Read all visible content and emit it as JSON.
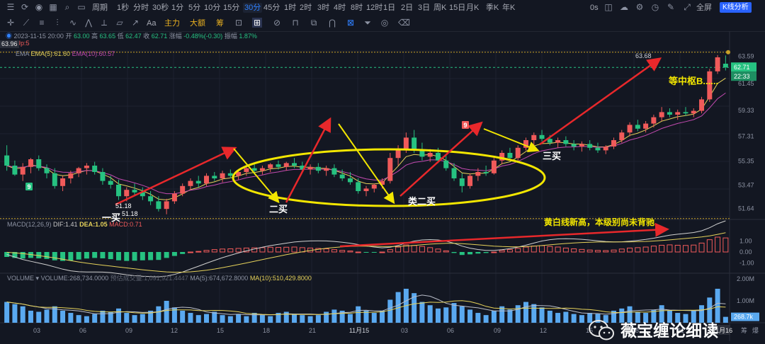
{
  "toolbar": {
    "top_items": [
      "周期",
      "1秒",
      "分时",
      "30秒",
      "1分",
      "5分",
      "10分",
      "15分",
      "30分",
      "45分",
      "1时",
      "2时",
      "3时",
      "4时",
      "8时",
      "12时",
      "1日",
      "2日",
      "3日",
      "周K",
      "15日",
      "月K",
      "季K",
      "年K"
    ],
    "active_period": "30分",
    "right_items": [
      "0s",
      "全屏",
      "K线分析"
    ],
    "draw_tools": [
      "Aa",
      "主力",
      "大额",
      "筹"
    ]
  },
  "ohlc_info": {
    "datetime": "2023-11-15 20:00",
    "open_label": "开",
    "open": "63.00",
    "high_label": "高",
    "high": "63.65",
    "low_label": "低",
    "low": "62.47",
    "close_label": "收",
    "close": "62.71",
    "change_label": "涨幅",
    "change": "-0.48%(-0.30)",
    "amp_label": "振幅",
    "amp": "1.87%"
  },
  "indicators": {
    "price_flag": "63.96",
    "td_label": "TD",
    "td_value": "Up:5",
    "ema_label": "EMA",
    "ema5": "EMA(5):61.60",
    "ema10": "EMA(10):60.57",
    "macd_label": "MACD(12,26,9)",
    "dif": "DIF:1.41",
    "dea": "DEA:1.05",
    "macd": "MACD:0.71",
    "vol_label": "VOLUME",
    "vol_value": "VOLUME:268,734.0000",
    "vol_est": "预估成交量:1,091,921.4447",
    "ma5": "MA(5):674,672.8000",
    "ma10": "MA(10):510,429.8000"
  },
  "colors": {
    "up": "#f05a5a",
    "down": "#26c281",
    "ema5": "#e6d25a",
    "ema10": "#c24ab0",
    "arrow_red": "#e8282b",
    "arrow_yellow": "#f2e600",
    "ellipse": "#f2e600",
    "vol": "#5aa9f0",
    "bg": "#131722"
  },
  "price_axis": {
    "ticks": [
      "63.59",
      "61.45",
      "59.33",
      "57.31",
      "55.35",
      "53.47",
      "51.64"
    ],
    "tag_last": "62.71",
    "tag_time": "22:33"
  },
  "macd_axis": {
    "ticks": [
      "1.00",
      "0.00",
      "-1.00"
    ]
  },
  "vol_axis": {
    "ticks": [
      "2.00M",
      "1.00M"
    ],
    "tag": "268.7k"
  },
  "time_axis": {
    "ticks": [
      "03",
      "06",
      "09",
      "12",
      "15",
      "18",
      "21",
      "11月15",
      "03",
      "06",
      "09",
      "12",
      "15",
      "18",
      "21"
    ],
    "cursor_label": "11月16",
    "extra": [
      "筹",
      "爆"
    ]
  },
  "annotations": {
    "buy1": "一买",
    "buy1_low": "51.18",
    "buy1_low2": "51.18",
    "buy2": "二买",
    "buy2_like": "类二买",
    "buy3": "三买",
    "high_label": "63.68",
    "center": "等中枢B......",
    "macd_note": "黄白线新高，本级别尚未背驰",
    "td9a": "9",
    "td9b": "9"
  },
  "watermark": "薇宝缠论细读",
  "chart_data": {
    "type": "candlestick",
    "title": "",
    "ylim": [
      51.0,
      64.0
    ],
    "candles": [
      [
        55.8,
        56.6,
        54.6,
        55.0
      ],
      [
        55.0,
        55.4,
        54.2,
        54.3
      ],
      [
        54.3,
        55.2,
        53.8,
        54.9
      ],
      [
        54.9,
        55.6,
        54.4,
        55.5
      ],
      [
        55.5,
        55.8,
        54.6,
        54.8
      ],
      [
        54.8,
        55.1,
        54.0,
        54.4
      ],
      [
        54.4,
        54.8,
        53.2,
        53.4
      ],
      [
        53.4,
        54.2,
        53.0,
        54.0
      ],
      [
        54.0,
        54.6,
        53.6,
        54.4
      ],
      [
        54.4,
        54.9,
        54.1,
        54.8
      ],
      [
        54.8,
        55.2,
        54.3,
        55.0
      ],
      [
        55.0,
        55.3,
        54.3,
        54.5
      ],
      [
        54.5,
        54.8,
        53.5,
        53.8
      ],
      [
        53.8,
        54.2,
        53.2,
        53.5
      ],
      [
        53.5,
        53.9,
        52.3,
        52.6
      ],
      [
        52.6,
        53.3,
        52.2,
        53.1
      ],
      [
        53.1,
        53.6,
        52.6,
        52.9
      ],
      [
        52.9,
        53.3,
        52.3,
        52.6
      ],
      [
        52.6,
        53.0,
        51.9,
        52.2
      ],
      [
        52.2,
        52.6,
        51.4,
        51.6
      ],
      [
        51.6,
        52.4,
        51.18,
        52.2
      ],
      [
        52.2,
        53.0,
        52.0,
        52.8
      ],
      [
        52.8,
        53.6,
        52.6,
        53.4
      ],
      [
        53.4,
        54.0,
        53.1,
        53.8
      ],
      [
        53.8,
        54.2,
        53.3,
        53.6
      ],
      [
        53.6,
        54.4,
        53.4,
        54.2
      ],
      [
        54.2,
        54.5,
        53.8,
        54.0
      ],
      [
        54.0,
        54.6,
        53.7,
        54.4
      ],
      [
        54.4,
        54.7,
        54.0,
        54.2
      ],
      [
        54.2,
        54.6,
        53.9,
        54.5
      ],
      [
        54.5,
        55.0,
        54.2,
        54.8
      ],
      [
        54.8,
        55.1,
        54.3,
        54.6
      ],
      [
        54.6,
        55.0,
        54.3,
        54.8
      ],
      [
        54.8,
        55.2,
        54.5,
        55.1
      ],
      [
        55.1,
        55.4,
        54.7,
        54.9
      ],
      [
        54.9,
        55.3,
        54.6,
        55.2
      ],
      [
        55.2,
        55.6,
        54.8,
        55.0
      ],
      [
        55.0,
        55.3,
        54.5,
        54.7
      ],
      [
        54.7,
        55.1,
        54.3,
        54.9
      ],
      [
        54.9,
        55.2,
        54.4,
        54.6
      ],
      [
        54.6,
        55.0,
        54.2,
        54.8
      ],
      [
        54.8,
        55.1,
        54.1,
        54.3
      ],
      [
        54.3,
        54.7,
        53.8,
        54.0
      ],
      [
        54.0,
        54.5,
        53.5,
        53.7
      ],
      [
        53.7,
        54.0,
        52.8,
        53.0
      ],
      [
        53.0,
        53.4,
        52.6,
        53.2
      ],
      [
        53.2,
        53.6,
        52.9,
        53.5
      ],
      [
        53.5,
        54.0,
        53.2,
        53.8
      ],
      [
        53.8,
        56.0,
        53.6,
        55.6
      ],
      [
        55.6,
        56.6,
        55.0,
        56.3
      ],
      [
        56.3,
        57.6,
        56.0,
        57.2
      ],
      [
        57.2,
        57.8,
        56.0,
        56.2
      ],
      [
        56.2,
        56.8,
        55.4,
        55.7
      ],
      [
        55.7,
        56.3,
        55.3,
        56.0
      ],
      [
        56.0,
        56.4,
        55.2,
        55.4
      ],
      [
        55.4,
        55.8,
        54.6,
        54.8
      ],
      [
        54.8,
        55.2,
        53.8,
        54.0
      ],
      [
        54.0,
        54.4,
        52.9,
        53.4
      ],
      [
        53.4,
        54.4,
        53.2,
        54.2
      ],
      [
        54.2,
        54.8,
        53.8,
        54.5
      ],
      [
        54.5,
        55.0,
        54.2,
        54.4
      ],
      [
        54.4,
        55.6,
        54.3,
        55.4
      ],
      [
        55.4,
        56.2,
        55.1,
        56.0
      ],
      [
        56.0,
        56.4,
        55.4,
        55.6
      ],
      [
        55.6,
        56.6,
        55.4,
        56.4
      ],
      [
        56.4,
        57.2,
        56.2,
        57.0
      ],
      [
        57.0,
        57.6,
        56.6,
        57.4
      ],
      [
        57.4,
        57.8,
        56.9,
        57.1
      ],
      [
        57.1,
        57.4,
        56.6,
        56.8
      ],
      [
        56.8,
        57.2,
        56.4,
        57.0
      ],
      [
        57.0,
        57.3,
        56.5,
        56.7
      ],
      [
        56.7,
        57.0,
        56.2,
        56.5
      ],
      [
        56.5,
        56.9,
        56.1,
        56.7
      ],
      [
        56.7,
        57.0,
        56.2,
        56.4
      ],
      [
        56.4,
        56.8,
        56.0,
        56.2
      ],
      [
        56.2,
        56.6,
        55.9,
        56.5
      ],
      [
        56.5,
        57.2,
        56.3,
        57.0
      ],
      [
        57.0,
        57.8,
        56.8,
        57.6
      ],
      [
        57.6,
        58.4,
        57.3,
        58.2
      ],
      [
        58.2,
        58.6,
        57.7,
        57.9
      ],
      [
        57.9,
        58.5,
        57.6,
        58.3
      ],
      [
        58.3,
        59.0,
        58.0,
        58.8
      ],
      [
        58.8,
        59.6,
        58.5,
        59.2
      ],
      [
        59.2,
        59.5,
        58.8,
        59.0
      ],
      [
        59.0,
        59.4,
        58.6,
        59.2
      ],
      [
        59.2,
        59.6,
        58.9,
        59.1
      ],
      [
        59.1,
        59.5,
        58.8,
        59.3
      ],
      [
        59.3,
        60.4,
        59.1,
        60.2
      ],
      [
        60.2,
        62.6,
        60.0,
        62.4
      ],
      [
        62.4,
        63.68,
        62.2,
        63.5
      ],
      [
        63.0,
        63.65,
        62.47,
        62.71
      ]
    ],
    "macd_hist": [
      -0.25,
      -0.3,
      -0.33,
      -0.3,
      -0.32,
      -0.35,
      -0.42,
      -0.45,
      -0.43,
      -0.38,
      -0.33,
      -0.3,
      -0.32,
      -0.36,
      -0.42,
      -0.45,
      -0.44,
      -0.42,
      -0.41,
      -0.4,
      -0.3,
      -0.2,
      -0.1,
      0.0,
      0.03,
      0.08,
      0.12,
      0.15,
      0.16,
      0.18,
      0.2,
      0.21,
      0.22,
      0.24,
      0.23,
      0.24,
      0.25,
      0.22,
      0.2,
      0.18,
      0.16,
      0.12,
      0.08,
      0.05,
      0.0,
      -0.03,
      -0.02,
      0.0,
      0.12,
      0.25,
      0.36,
      0.33,
      0.28,
      0.22,
      0.15,
      0.06,
      -0.05,
      -0.15,
      -0.12,
      -0.08,
      -0.05,
      0.0,
      0.08,
      0.12,
      0.18,
      0.25,
      0.3,
      0.32,
      0.28,
      0.25,
      0.2,
      0.16,
      0.13,
      0.1,
      0.08,
      0.07,
      0.1,
      0.15,
      0.2,
      0.22,
      0.25,
      0.3,
      0.34,
      0.36,
      0.34,
      0.33,
      0.35,
      0.45,
      0.62,
      0.75,
      0.71
    ],
    "volume": [
      0.95,
      0.85,
      0.75,
      0.55,
      0.5,
      0.6,
      0.75,
      0.55,
      0.45,
      0.35,
      0.3,
      0.4,
      0.55,
      0.5,
      0.65,
      0.45,
      0.35,
      0.4,
      0.55,
      0.75,
      1.0,
      0.7,
      0.55,
      0.45,
      0.35,
      0.4,
      0.5,
      0.35,
      0.3,
      0.4,
      0.3,
      0.45,
      0.35,
      0.3,
      0.45,
      0.5,
      0.4,
      0.35,
      0.3,
      0.35,
      0.5,
      0.6,
      0.55,
      0.4,
      0.75,
      0.55,
      0.45,
      0.55,
      1.05,
      1.4,
      1.55,
      1.35,
      0.95,
      0.8,
      0.65,
      0.7,
      0.9,
      0.75,
      0.6,
      0.45,
      0.35,
      0.55,
      0.75,
      0.6,
      0.8,
      0.95,
      0.85,
      0.7,
      0.55,
      0.45,
      0.5,
      0.4,
      0.35,
      0.45,
      0.4,
      0.35,
      0.55,
      0.65,
      0.75,
      0.5,
      0.45,
      0.6,
      0.8,
      0.55,
      0.45,
      0.4,
      0.55,
      0.8,
      1.15,
      1.55,
      0.27
    ],
    "volume_unit": "M"
  }
}
